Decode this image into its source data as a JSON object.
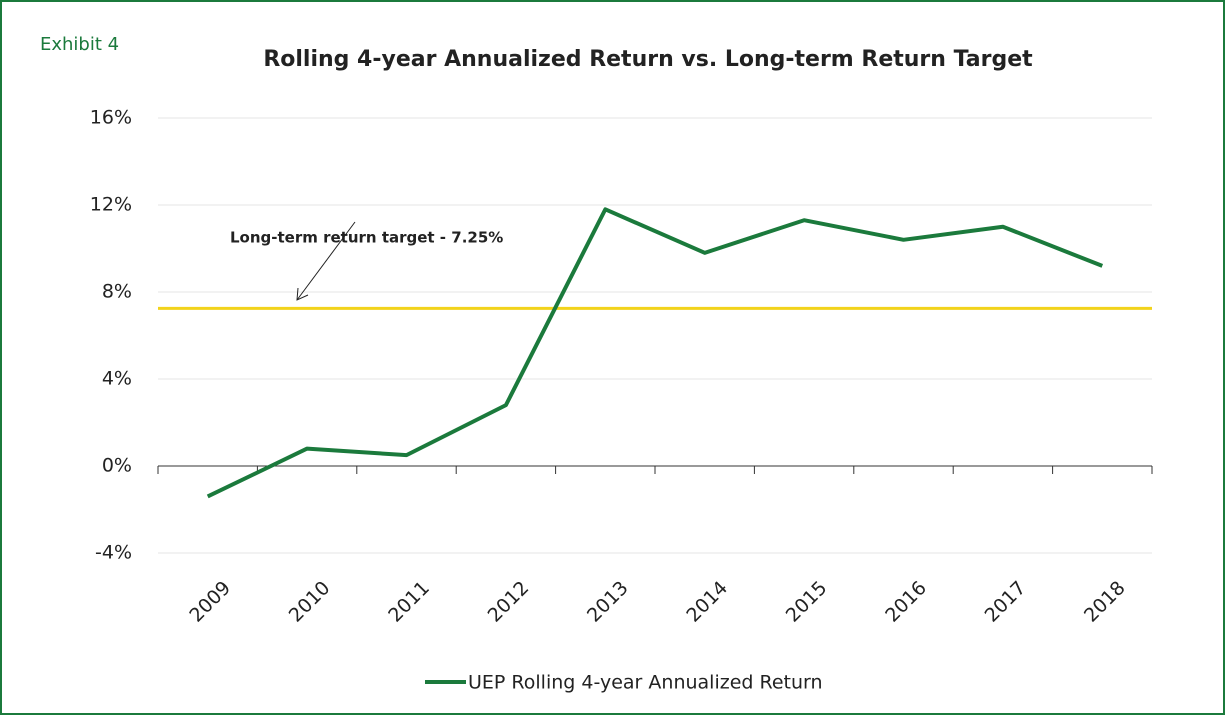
{
  "chart_data": {
    "type": "line",
    "label": "Exhibit 4",
    "title": "Rolling 4-year Annualized Return vs. Long-term Return Target",
    "categories": [
      "2009",
      "2010",
      "2011",
      "2012",
      "2013",
      "2014",
      "2015",
      "2016",
      "2017",
      "2018"
    ],
    "series": [
      {
        "name": "UEP Rolling 4-year Annualized Return",
        "color": "#1b7a3c",
        "values": [
          -1.4,
          0.8,
          0.5,
          2.8,
          11.8,
          9.8,
          11.3,
          10.4,
          11.0,
          9.2
        ]
      }
    ],
    "target": {
      "value": 7.25,
      "label": "Long-term return target - 7.25%",
      "color": "#f2d31b"
    },
    "ylim": [
      -4,
      16
    ],
    "yticks": [
      {
        "value": -4,
        "label": "-4%"
      },
      {
        "value": 0,
        "label": "0%"
      },
      {
        "value": 4,
        "label": "4%"
      },
      {
        "value": 8,
        "label": "8%"
      },
      {
        "value": 12,
        "label": "12%"
      },
      {
        "value": 16,
        "label": "16%"
      }
    ],
    "grid": true,
    "legend": "bottom"
  }
}
